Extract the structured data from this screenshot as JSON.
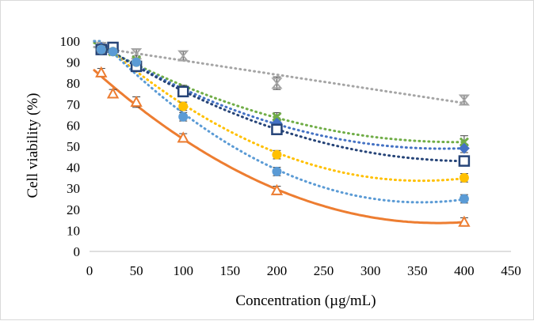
{
  "chart_data": {
    "type": "scatter",
    "title": "",
    "xlabel": "Concentration (µg/mL)",
    "ylabel": "Cell viability (%)",
    "xlim": [
      0,
      450
    ],
    "ylim": [
      0,
      100
    ],
    "x_ticks": [
      0,
      50,
      100,
      150,
      200,
      250,
      300,
      350,
      400,
      450
    ],
    "y_ticks": [
      0,
      10,
      20,
      30,
      40,
      50,
      60,
      70,
      80,
      90,
      100
    ],
    "grid": false,
    "legend": "none",
    "x": [
      12.5,
      25,
      50,
      100,
      200,
      400
    ],
    "series": [
      {
        "color": "#a5a5a5",
        "marker": "hourglass",
        "trendline": "linear",
        "values": [
          97,
          96,
          94,
          93,
          80,
          72
        ],
        "errors": [
          1.5,
          1.5,
          2,
          2,
          3,
          2
        ]
      },
      {
        "color": "#70ad47",
        "marker": "x-cross",
        "trendline": "poly2-dotted",
        "values": [
          96,
          95,
          91,
          77,
          64,
          52
        ],
        "errors": [
          1.5,
          1.5,
          2,
          2,
          2,
          3
        ]
      },
      {
        "color": "#4472c4",
        "marker": "diamond",
        "trendline": "poly2-dotted",
        "values": [
          97,
          96,
          89,
          76,
          61,
          49
        ],
        "errors": [
          1.5,
          1.5,
          2,
          2,
          2,
          2
        ]
      },
      {
        "color": "#264478",
        "marker": "hollow-square",
        "trendline": "poly2-dotted",
        "values": [
          96,
          97,
          88,
          76,
          58,
          43
        ],
        "errors": [
          1.5,
          1.5,
          2,
          2,
          2,
          2
        ]
      },
      {
        "color": "#ffc000",
        "marker": "circle",
        "trendline": "poly2-dotted",
        "values": [
          96,
          95,
          90,
          69,
          46,
          35
        ],
        "errors": [
          1.5,
          1.5,
          2,
          2,
          2,
          2
        ]
      },
      {
        "color": "#5b9bd5",
        "marker": "circle",
        "trendline": "poly2-dotted",
        "values": [
          96,
          95,
          90,
          64,
          38,
          25
        ],
        "errors": [
          1.5,
          1.5,
          2,
          2,
          2,
          2
        ]
      },
      {
        "color": "#ed7d31",
        "marker": "hollow-triangle",
        "trendline": "poly2-solid",
        "values": [
          85,
          75,
          71,
          54,
          29,
          14
        ],
        "errors": [
          2,
          2,
          2.5,
          2,
          2,
          2
        ]
      }
    ]
  }
}
